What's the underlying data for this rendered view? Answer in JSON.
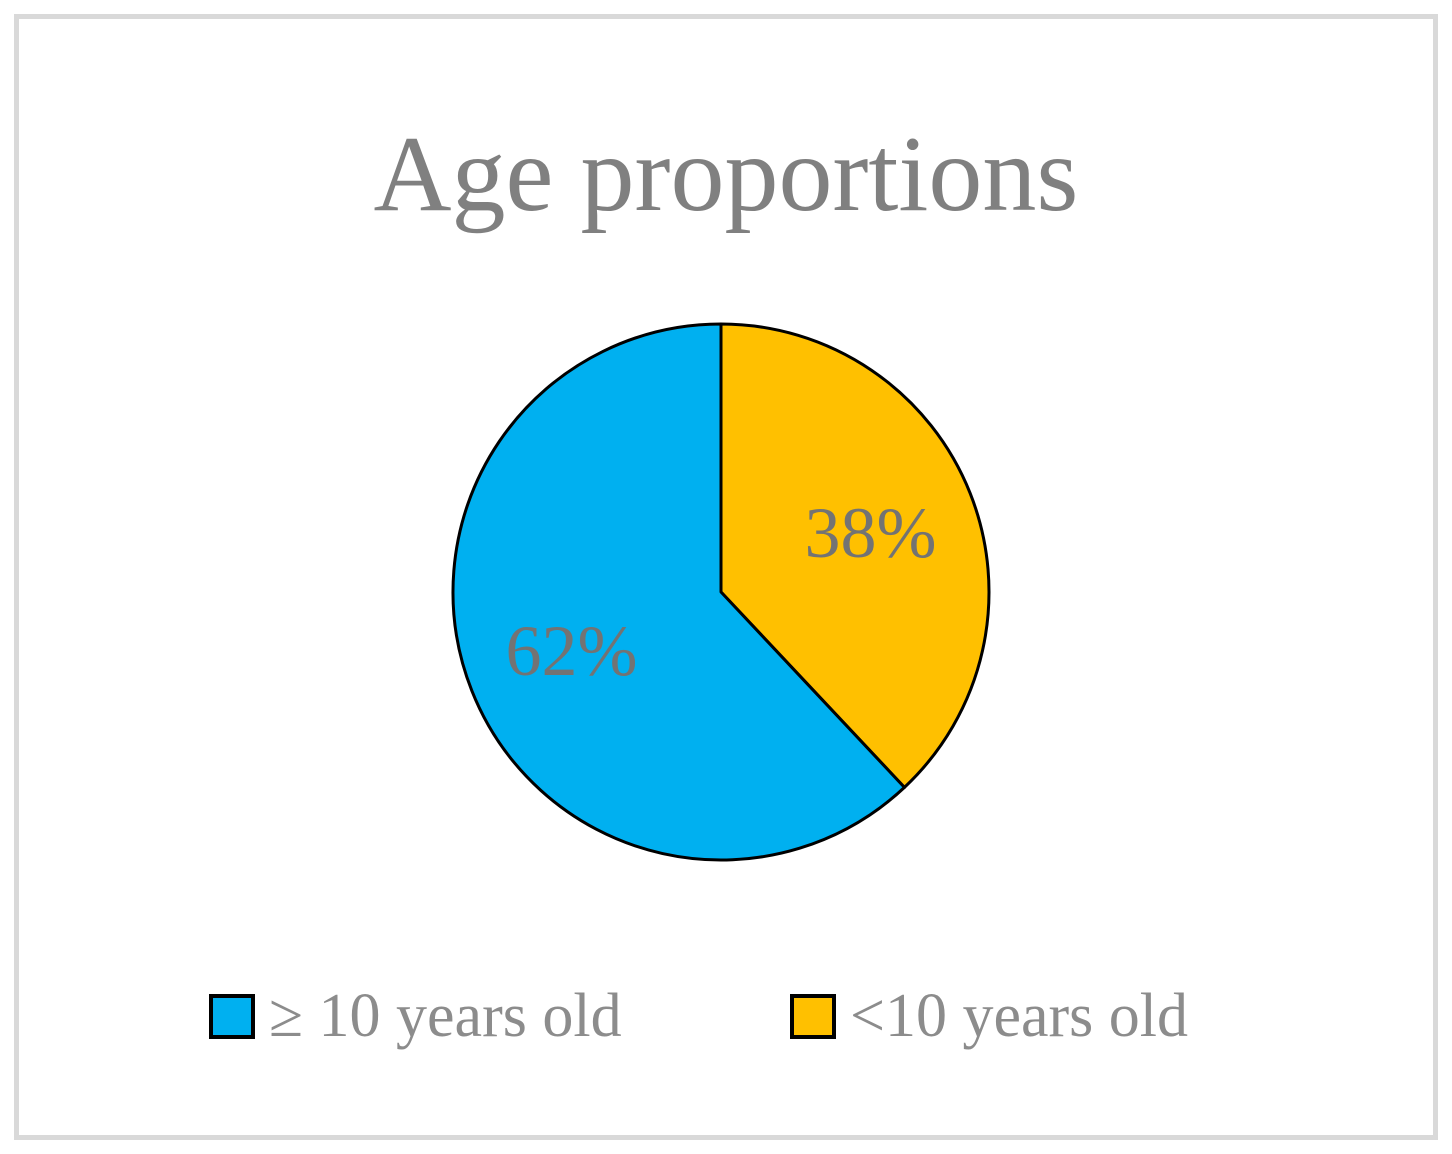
{
  "page": {
    "background_color": "#FFFFFF",
    "frame_border_color": "#D9D9D9"
  },
  "chart_data": {
    "type": "pie",
    "title": "Age proportions",
    "categories": [
      "≥ 10 years old",
      "<10 years old"
    ],
    "values": [
      62,
      38
    ],
    "data_labels": [
      "62%",
      "38%"
    ],
    "colors": [
      "#00B0F0",
      "#FFC000"
    ],
    "start_angle_deg": 0,
    "direction": "clockwise",
    "draw_order": [
      1,
      0
    ],
    "label_radius_fraction": 0.6,
    "legend_position": "bottom",
    "slice_stroke_color": "#000000",
    "slice_stroke_width": 3,
    "title_color": "#808080",
    "data_label_color": "#737373",
    "data_label_font_size": 72,
    "legend_text_color": "#8C8C8C",
    "legend_marker_border_color": "#000000"
  }
}
